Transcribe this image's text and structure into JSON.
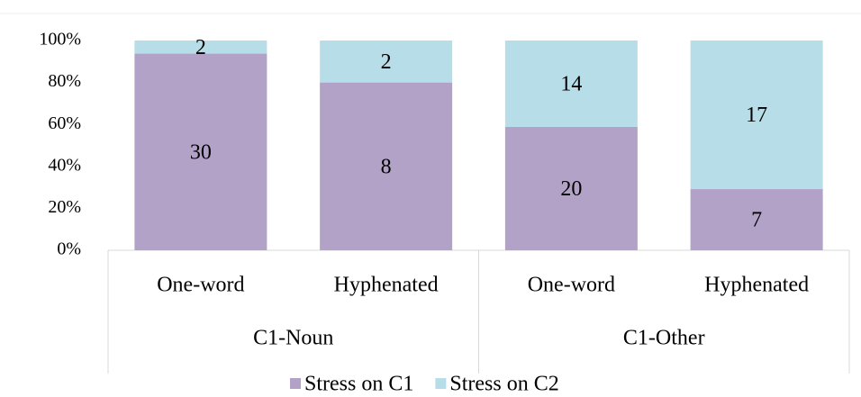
{
  "chart_data": {
    "type": "bar",
    "stacking": "percent",
    "categories": [
      "One-word",
      "Hyphenated",
      "One-word",
      "Hyphenated"
    ],
    "category_groups": [
      "C1-Noun",
      "C1-Other"
    ],
    "series": [
      {
        "name": "Stress on C1",
        "color": "#b3a2c7",
        "values": [
          30,
          8,
          20,
          7
        ]
      },
      {
        "name": "Stress on C2",
        "color": "#b7dee8",
        "values": [
          2,
          2,
          14,
          17
        ]
      }
    ],
    "ylim": [
      0,
      100
    ],
    "yticks": [
      {
        "value": 0,
        "label": "0%"
      },
      {
        "value": 20,
        "label": "20%"
      },
      {
        "value": 40,
        "label": "40%"
      },
      {
        "value": 60,
        "label": "60%"
      },
      {
        "value": 80,
        "label": "80%"
      },
      {
        "value": 100,
        "label": "100%"
      }
    ],
    "legend": "bottom"
  }
}
